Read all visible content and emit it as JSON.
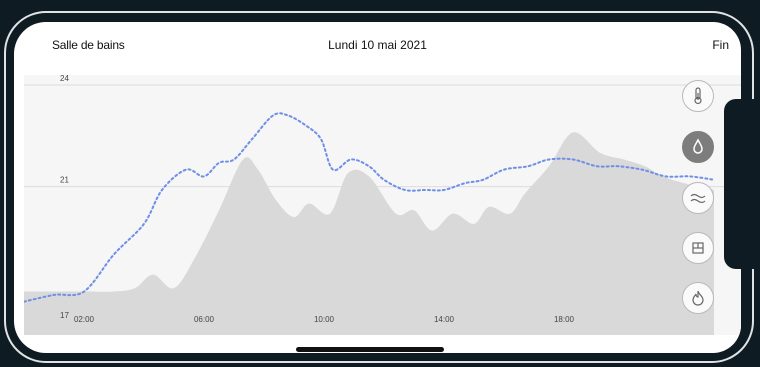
{
  "header": {
    "room": "Salle de bains",
    "date": "Lundi 10 mai 2021",
    "done_label": "Fin"
  },
  "sensors": [
    {
      "name": "temperature-icon",
      "active": false
    },
    {
      "name": "humidity-drop-icon",
      "active": true
    },
    {
      "name": "air-waves-icon",
      "active": false
    },
    {
      "name": "window-icon",
      "active": false
    },
    {
      "name": "flame-icon",
      "active": false
    }
  ],
  "colors": {
    "line": "#6f8fe6",
    "area": "#d9d9d9",
    "active_button": "#7d7d7d"
  },
  "chart_data": {
    "type": "area",
    "y_ticks": [
      "24",
      "21",
      "17"
    ],
    "ylim": [
      17,
      24
    ],
    "x_tick_labels": [
      "02:00",
      "06:00",
      "10:00",
      "14:00",
      "18:00"
    ],
    "x_range": [
      0,
      23
    ],
    "grid": "horizontal",
    "series": [
      {
        "kind": "area",
        "x": [
          0,
          1,
          2,
          3,
          3.7,
          4.3,
          5,
          5.7,
          6.5,
          7.3,
          7.8,
          8.4,
          9,
          9.5,
          10.2,
          10.8,
          11.5,
          12.4,
          13,
          13.6,
          14.3,
          15,
          15.5,
          16.2,
          16.7,
          17.5,
          18.3,
          19.2,
          20,
          20.7,
          21.3,
          22,
          23
        ],
        "y": [
          17.9,
          17.9,
          17.9,
          17.9,
          18.0,
          18.4,
          18.0,
          18.9,
          20.3,
          21.8,
          21.5,
          20.6,
          20.1,
          20.5,
          20.2,
          21.4,
          21.3,
          20.2,
          20.3,
          19.7,
          20.2,
          19.9,
          20.4,
          20.2,
          20.8,
          21.6,
          22.6,
          22.0,
          21.8,
          21.6,
          21.3,
          21.1,
          20.9
        ]
      },
      {
        "kind": "dotted-line",
        "x": [
          0,
          1,
          2,
          3,
          4,
          4.6,
          5.4,
          6,
          6.5,
          7,
          7.6,
          8.3,
          8.8,
          9.4,
          9.9,
          10.3,
          10.9,
          11.5,
          12,
          12.7,
          13.4,
          14,
          14.7,
          15.3,
          16,
          16.8,
          17.5,
          18.3,
          19.1,
          19.8,
          20.6,
          21.4,
          22.2,
          23
        ],
        "y": [
          17.6,
          17.8,
          17.9,
          19.0,
          19.9,
          20.9,
          21.5,
          21.3,
          21.7,
          21.8,
          22.4,
          23.1,
          23.1,
          22.8,
          22.4,
          21.5,
          21.8,
          21.6,
          21.2,
          20.9,
          20.9,
          20.9,
          21.1,
          21.2,
          21.5,
          21.6,
          21.8,
          21.8,
          21.6,
          21.6,
          21.5,
          21.3,
          21.3,
          21.2
        ]
      }
    ]
  }
}
